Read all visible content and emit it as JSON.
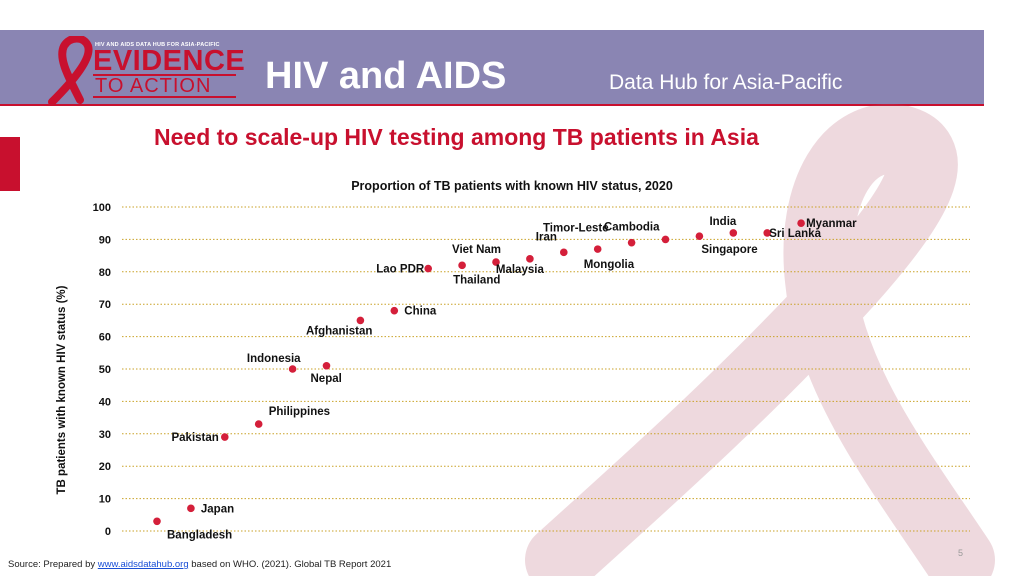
{
  "header": {
    "logo_top_text": "HIV AND AIDS DATA HUB FOR ASIA-PACIFIC",
    "logo_line1": "EVIDENCE",
    "logo_line2": "TO ACTION",
    "title": "HIV and AIDS",
    "subtitle": "Data Hub for Asia-Pacific"
  },
  "page": {
    "heading": "Need to scale-up HIV testing among TB patients in Asia",
    "page_number": "5"
  },
  "footer": {
    "prefix": "Source: Prepared by ",
    "link_text": "www.aidsdatahub.org",
    "suffix": " based on WHO. (2021). Global TB Report 2021"
  },
  "colors": {
    "header_bg": "#8a85b3",
    "accent_red": "#c8102e",
    "point_color": "#d41f3a",
    "grid_color": "#c9a227"
  },
  "chart_data": {
    "type": "scatter",
    "title": "Proportion of TB patients with known HIV status, 2020",
    "xlabel": "",
    "ylabel": "TB patients with known HIV status (%)",
    "ylim": [
      0,
      100
    ],
    "yticks": [
      0,
      10,
      20,
      30,
      40,
      50,
      60,
      70,
      80,
      90,
      100
    ],
    "grid": true,
    "points": [
      {
        "label": "Bangladesh",
        "rank": 1,
        "value": 3
      },
      {
        "label": "Japan",
        "rank": 2,
        "value": 7
      },
      {
        "label": "Pakistan",
        "rank": 3,
        "value": 29
      },
      {
        "label": "Philippines",
        "rank": 4,
        "value": 33
      },
      {
        "label": "Indonesia",
        "rank": 5,
        "value": 50
      },
      {
        "label": "Nepal",
        "rank": 6,
        "value": 51
      },
      {
        "label": "Afghanistan",
        "rank": 7,
        "value": 65
      },
      {
        "label": "China",
        "rank": 8,
        "value": 68
      },
      {
        "label": "Lao PDR",
        "rank": 9,
        "value": 81
      },
      {
        "label": "Thailand",
        "rank": 10,
        "value": 82
      },
      {
        "label": "Viet Nam",
        "rank": 11,
        "value": 83
      },
      {
        "label": "Malaysia",
        "rank": 12,
        "value": 84
      },
      {
        "label": "Iran",
        "rank": 13,
        "value": 86
      },
      {
        "label": "Mongolia",
        "rank": 14,
        "value": 87
      },
      {
        "label": "Timor-Leste",
        "rank": 15,
        "value": 89
      },
      {
        "label": "Cambodia",
        "rank": 16,
        "value": 90
      },
      {
        "label": "Singapore",
        "rank": 17,
        "value": 91
      },
      {
        "label": "India",
        "rank": 18,
        "value": 92
      },
      {
        "label": "Sri Lanka",
        "rank": 19,
        "value": 92
      },
      {
        "label": "Myanmar",
        "rank": 20,
        "value": 95
      }
    ]
  }
}
